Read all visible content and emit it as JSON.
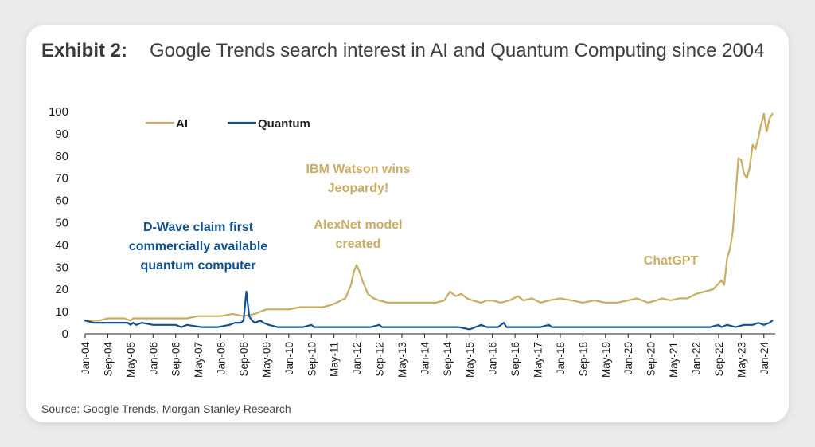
{
  "header": {
    "label": "Exhibit 2:",
    "title": "Google Trends search interest in AI and Quantum Computing since 2004"
  },
  "footer": {
    "source": "Source: Google Trends, Morgan Stanley Research"
  },
  "colors": {
    "ai": "#c8ad63",
    "quantum": "#12518f",
    "axis": "#222222"
  },
  "chart_data": {
    "type": "line",
    "ylim": [
      0,
      100
    ],
    "yticks": [
      0,
      10,
      20,
      30,
      40,
      50,
      60,
      70,
      80,
      90,
      100
    ],
    "x_labels": [
      "Jan-04",
      "Sep-04",
      "May-05",
      "Jan-06",
      "Sep-06",
      "May-07",
      "Jan-08",
      "Sep-08",
      "May-09",
      "Jan-10",
      "Sep-10",
      "May-11",
      "Jan-12",
      "Sep-12",
      "May-13",
      "Jan-14",
      "Sep-14",
      "May-15",
      "Jan-16",
      "Sep-16",
      "May-17",
      "Jan-18",
      "Sep-18",
      "May-19",
      "Jan-20",
      "Sep-20",
      "May-21",
      "Jan-22",
      "Sep-22",
      "May-23",
      "Jan-24"
    ],
    "legend": {
      "position": "top-left",
      "entries": [
        "AI",
        "Quantum"
      ]
    },
    "series": [
      {
        "name": "AI",
        "points": [
          [
            "2004-01",
            6
          ],
          [
            "2004-06",
            6
          ],
          [
            "2004-09",
            7
          ],
          [
            "2005-03",
            7
          ],
          [
            "2005-05",
            6
          ],
          [
            "2005-06",
            7
          ],
          [
            "2006-01",
            7
          ],
          [
            "2006-06",
            7
          ],
          [
            "2007-01",
            7
          ],
          [
            "2007-05",
            8
          ],
          [
            "2008-01",
            8
          ],
          [
            "2008-05",
            9
          ],
          [
            "2008-09",
            8
          ],
          [
            "2009-01",
            9
          ],
          [
            "2009-03",
            10
          ],
          [
            "2009-05",
            11
          ],
          [
            "2009-09",
            11
          ],
          [
            "2010-01",
            11
          ],
          [
            "2010-05",
            12
          ],
          [
            "2010-09",
            12
          ],
          [
            "2011-01",
            12
          ],
          [
            "2011-04",
            13
          ],
          [
            "2011-06",
            14
          ],
          [
            "2011-09",
            16
          ],
          [
            "2011-11",
            22
          ],
          [
            "2011-12",
            28
          ],
          [
            "2012-01",
            31
          ],
          [
            "2012-02",
            28
          ],
          [
            "2012-03",
            24
          ],
          [
            "2012-05",
            18
          ],
          [
            "2012-07",
            16
          ],
          [
            "2012-09",
            15
          ],
          [
            "2012-12",
            14
          ],
          [
            "2013-05",
            14
          ],
          [
            "2013-09",
            14
          ],
          [
            "2014-01",
            14
          ],
          [
            "2014-05",
            14
          ],
          [
            "2014-08",
            15
          ],
          [
            "2014-10",
            19
          ],
          [
            "2014-12",
            17
          ],
          [
            "2015-02",
            18
          ],
          [
            "2015-04",
            16
          ],
          [
            "2015-06",
            15
          ],
          [
            "2015-09",
            14
          ],
          [
            "2015-11",
            15
          ],
          [
            "2016-01",
            15
          ],
          [
            "2016-04",
            14
          ],
          [
            "2016-07",
            15
          ],
          [
            "2016-10",
            17
          ],
          [
            "2016-12",
            15
          ],
          [
            "2017-03",
            16
          ],
          [
            "2017-06",
            14
          ],
          [
            "2017-09",
            15
          ],
          [
            "2018-01",
            16
          ],
          [
            "2018-05",
            15
          ],
          [
            "2018-09",
            14
          ],
          [
            "2019-01",
            15
          ],
          [
            "2019-05",
            14
          ],
          [
            "2019-09",
            14
          ],
          [
            "2020-01",
            15
          ],
          [
            "2020-04",
            16
          ],
          [
            "2020-08",
            14
          ],
          [
            "2020-11",
            15
          ],
          [
            "2021-01",
            16
          ],
          [
            "2021-04",
            15
          ],
          [
            "2021-07",
            16
          ],
          [
            "2021-10",
            16
          ],
          [
            "2022-01",
            18
          ],
          [
            "2022-04",
            19
          ],
          [
            "2022-07",
            20
          ],
          [
            "2022-10",
            24
          ],
          [
            "2022-11",
            22
          ],
          [
            "2022-12",
            34
          ],
          [
            "2023-01",
            38
          ],
          [
            "2023-02",
            46
          ],
          [
            "2023-03",
            63
          ],
          [
            "2023-04",
            79
          ],
          [
            "2023-05",
            78
          ],
          [
            "2023-06",
            72
          ],
          [
            "2023-07",
            70
          ],
          [
            "2023-08",
            75
          ],
          [
            "2023-09",
            85
          ],
          [
            "2023-10",
            83
          ],
          [
            "2023-11",
            88
          ],
          [
            "2023-12",
            94
          ],
          [
            "2024-01",
            99
          ],
          [
            "2024-02",
            91
          ],
          [
            "2024-03",
            97
          ],
          [
            "2024-04",
            99
          ]
        ]
      },
      {
        "name": "Quantum",
        "points": [
          [
            "2004-01",
            6
          ],
          [
            "2004-04",
            5
          ],
          [
            "2004-09",
            5
          ],
          [
            "2005-01",
            5
          ],
          [
            "2005-04",
            5
          ],
          [
            "2005-05",
            4
          ],
          [
            "2005-06",
            5
          ],
          [
            "2005-07",
            4
          ],
          [
            "2005-09",
            5
          ],
          [
            "2006-01",
            4
          ],
          [
            "2006-06",
            4
          ],
          [
            "2006-09",
            4
          ],
          [
            "2006-11",
            3
          ],
          [
            "2007-01",
            4
          ],
          [
            "2007-06",
            3
          ],
          [
            "2007-12",
            3
          ],
          [
            "2008-04",
            4
          ],
          [
            "2008-06",
            5
          ],
          [
            "2008-08",
            5
          ],
          [
            "2008-09",
            6
          ],
          [
            "2008-10",
            19
          ],
          [
            "2008-11",
            8
          ],
          [
            "2008-12",
            6
          ],
          [
            "2009-01",
            5
          ],
          [
            "2009-03",
            6
          ],
          [
            "2009-04",
            5
          ],
          [
            "2009-06",
            4
          ],
          [
            "2009-09",
            3
          ],
          [
            "2010-01",
            3
          ],
          [
            "2010-06",
            3
          ],
          [
            "2010-09",
            4
          ],
          [
            "2010-10",
            3
          ],
          [
            "2011-06",
            3
          ],
          [
            "2012-01",
            3
          ],
          [
            "2012-06",
            3
          ],
          [
            "2012-09",
            4
          ],
          [
            "2012-10",
            3
          ],
          [
            "2013-06",
            3
          ],
          [
            "2014-01",
            3
          ],
          [
            "2014-06",
            3
          ],
          [
            "2015-01",
            3
          ],
          [
            "2015-05",
            2
          ],
          [
            "2015-07",
            3
          ],
          [
            "2015-09",
            4
          ],
          [
            "2015-11",
            3
          ],
          [
            "2016-03",
            3
          ],
          [
            "2016-05",
            5
          ],
          [
            "2016-06",
            3
          ],
          [
            "2017-01",
            3
          ],
          [
            "2017-06",
            3
          ],
          [
            "2017-09",
            4
          ],
          [
            "2017-10",
            3
          ],
          [
            "2018-06",
            3
          ],
          [
            "2019-06",
            3
          ],
          [
            "2020-06",
            3
          ],
          [
            "2021-06",
            3
          ],
          [
            "2022-06",
            3
          ],
          [
            "2022-09",
            4
          ],
          [
            "2022-10",
            3
          ],
          [
            "2022-12",
            4
          ],
          [
            "2023-03",
            3
          ],
          [
            "2023-06",
            4
          ],
          [
            "2023-09",
            4
          ],
          [
            "2023-11",
            5
          ],
          [
            "2024-01",
            4
          ],
          [
            "2024-03",
            5
          ],
          [
            "2024-04",
            6
          ]
        ]
      }
    ],
    "annotations": [
      {
        "text": "D-Wave claim first\ncommercially available\nquantum computer",
        "series": "Quantum"
      },
      {
        "text": "IBM Watson wins\nJeopardy!",
        "series": "AI"
      },
      {
        "text": "AlexNet model\ncreated",
        "series": "AI"
      },
      {
        "text": "ChatGPT",
        "series": "AI"
      }
    ]
  }
}
